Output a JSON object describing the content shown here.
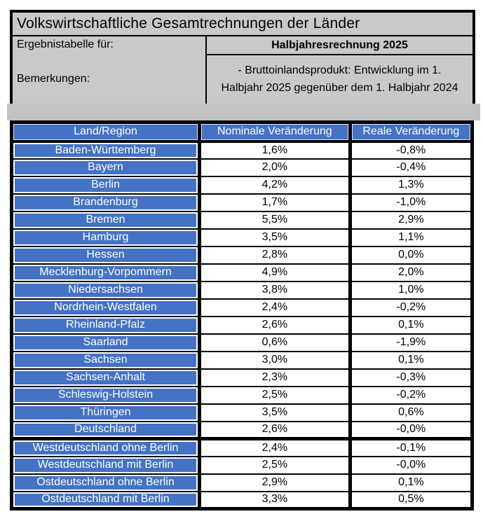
{
  "header": {
    "title": "Volkswirtschaftliche Gesamtrechnungen der Länder",
    "result_table_label": "Ergebnistabelle für:",
    "result_table_value": "Halbjahresrechnung 2025",
    "remarks_label": "Bemerkungen:",
    "remarks_line1": "- Bruttoinlandsprodukt: Entwicklung im 1.",
    "remarks_line2": "Halbjahr 2025 gegenüber dem 1. Halbjahr 2024"
  },
  "colors": {
    "accent_blue": "#4472c4",
    "header_gray": "#c9c9c9",
    "border_black": "#000000",
    "cell_white": "#ffffff"
  },
  "table": {
    "columns": [
      "Land/Region",
      "Nominale Veränderung",
      "Reale Veränderung"
    ],
    "rows": [
      {
        "region": "Baden-Württemberg",
        "nominal": "1,6%",
        "real": "-0,8%"
      },
      {
        "region": "Bayern",
        "nominal": "2,0%",
        "real": "-0,4%"
      },
      {
        "region": "Berlin",
        "nominal": "4,2%",
        "real": "1,3%"
      },
      {
        "region": "Brandenburg",
        "nominal": "1,7%",
        "real": "-1,0%"
      },
      {
        "region": "Bremen",
        "nominal": "5,5%",
        "real": "2,9%"
      },
      {
        "region": "Hamburg",
        "nominal": "3,5%",
        "real": "1,1%"
      },
      {
        "region": "Hessen",
        "nominal": "2,8%",
        "real": "0,0%"
      },
      {
        "region": "Mecklenburg-Vorpommern",
        "nominal": "4,9%",
        "real": "2,0%"
      },
      {
        "region": "Niedersachsen",
        "nominal": "3,8%",
        "real": "1,0%"
      },
      {
        "region": "Nordrhein-Westfalen",
        "nominal": "2,4%",
        "real": "-0,2%"
      },
      {
        "region": "Rheinland-Pfalz",
        "nominal": "2,6%",
        "real": "0,1%"
      },
      {
        "region": "Saarland",
        "nominal": "0,6%",
        "real": "-1,9%"
      },
      {
        "region": "Sachsen",
        "nominal": "3,0%",
        "real": "0,1%"
      },
      {
        "region": "Sachsen-Anhalt",
        "nominal": "2,3%",
        "real": "-0,3%"
      },
      {
        "region": "Schleswig-Holstein",
        "nominal": "2,5%",
        "real": "-0,2%"
      },
      {
        "region": "Thüringen",
        "nominal": "3,5%",
        "real": "0,6%"
      },
      {
        "region": "Deutschland",
        "nominal": "2,6%",
        "real": "-0,0%"
      }
    ],
    "aggregate_rows": [
      {
        "region": "Westdeutschland ohne Berlin",
        "nominal": "2,4%",
        "real": "-0,1%"
      },
      {
        "region": "Westdeutschland mit Berlin",
        "nominal": "2,5%",
        "real": "-0,0%"
      },
      {
        "region": "Ostdeutschland ohne Berlin",
        "nominal": "2,9%",
        "real": "0,1%"
      },
      {
        "region": "Ostdeutschland mit Berlin",
        "nominal": "3,3%",
        "real": "0,5%"
      }
    ]
  }
}
